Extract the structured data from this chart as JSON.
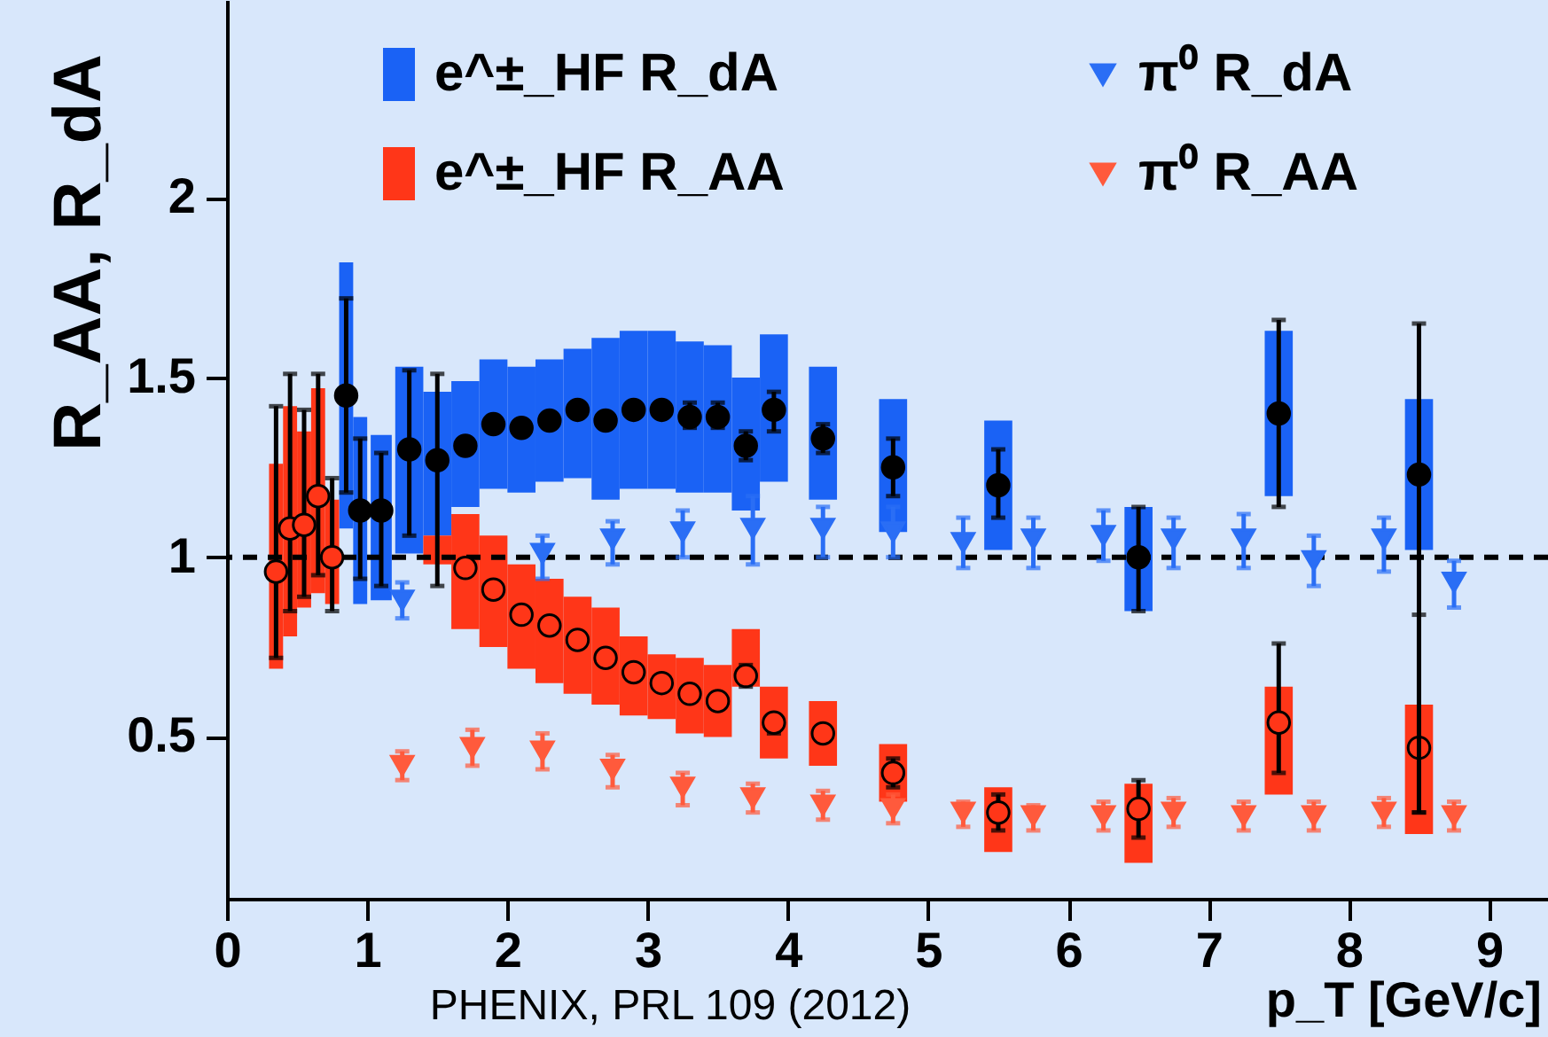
{
  "chart_data": {
    "type": "scatter",
    "xlabel": "p_T [GeV/c]",
    "ylabel": "R_AA, R_dA",
    "xlim": [
      0,
      9.42
    ],
    "ylim": [
      0.05,
      2.55
    ],
    "xticks": [
      0,
      1,
      2,
      3,
      4,
      5,
      6,
      7,
      8,
      9
    ],
    "yticks": [
      0.5,
      1,
      1.5,
      2
    ],
    "grid": false,
    "legend": "top",
    "series": [
      {
        "name": "e^±_HF R_dA",
        "type": "bar",
        "color": "#1a62f5",
        "x": [
          0.85,
          0.95,
          1.1,
          1.3,
          1.5,
          1.7,
          1.9,
          2.1,
          2.3,
          2.5,
          2.7,
          2.9,
          3.1,
          3.3,
          3.5,
          3.7,
          3.9,
          4.25,
          4.75,
          5.5,
          6.5,
          7.5,
          8.5
        ],
        "base": [
          1.08,
          0.87,
          0.88,
          1.01,
          1.06,
          1.14,
          1.19,
          1.18,
          1.21,
          1.22,
          1.16,
          1.19,
          1.19,
          1.18,
          1.18,
          1.13,
          1.21,
          1.16,
          1.07,
          1.02,
          0.85,
          1.17,
          1.02
        ],
        "values": [
          0.74,
          0.52,
          0.46,
          0.52,
          0.4,
          0.35,
          0.36,
          0.35,
          0.34,
          0.36,
          0.45,
          0.44,
          0.44,
          0.42,
          0.41,
          0.37,
          0.41,
          0.37,
          0.37,
          0.36,
          0.29,
          0.46,
          0.42
        ]
      },
      {
        "name": "e^±_HF R_AA",
        "type": "bar",
        "color": "#ff3618",
        "x": [
          0.35,
          0.45,
          0.55,
          0.65,
          0.75,
          1.5,
          1.7,
          1.9,
          2.1,
          2.3,
          2.5,
          2.7,
          2.9,
          3.1,
          3.3,
          3.5,
          3.7,
          3.9,
          4.25,
          4.75,
          5.5,
          6.5,
          7.5,
          8.5
        ],
        "base": [
          0.69,
          0.78,
          0.86,
          0.9,
          0.87,
          0.98,
          0.8,
          0.75,
          0.69,
          0.65,
          0.62,
          0.59,
          0.56,
          0.55,
          0.51,
          0.5,
          0.64,
          0.44,
          0.42,
          0.32,
          0.18,
          0.15,
          0.34,
          0.23
        ],
        "values": [
          0.57,
          0.64,
          0.49,
          0.57,
          0.29,
          0.08,
          0.32,
          0.31,
          0.29,
          0.29,
          0.27,
          0.27,
          0.22,
          0.18,
          0.21,
          0.2,
          0.16,
          0.2,
          0.18,
          0.16,
          0.18,
          0.22,
          0.3,
          0.36
        ]
      },
      {
        "name": "π⁰ R_dA",
        "marker": "triangle",
        "color": "#2a6ef5",
        "x": [
          1.25,
          2.25,
          2.75,
          3.25,
          3.75,
          4.25,
          4.75,
          5.25,
          5.75,
          6.25,
          6.75,
          7.25,
          7.75,
          8.25,
          8.75
        ],
        "values": [
          0.88,
          1.01,
          1.05,
          1.07,
          1.08,
          1.08,
          1.07,
          1.04,
          1.05,
          1.06,
          1.05,
          1.05,
          0.99,
          1.05,
          0.93
        ],
        "errors": [
          [
            0.83,
            0.93
          ],
          [
            0.94,
            1.06
          ],
          [
            0.98,
            1.1
          ],
          [
            1.0,
            1.13
          ],
          [
            0.98,
            1.17
          ],
          [
            1.0,
            1.14
          ],
          [
            1.0,
            1.14
          ],
          [
            0.97,
            1.11
          ],
          [
            0.97,
            1.11
          ],
          [
            0.99,
            1.13
          ],
          [
            0.97,
            1.11
          ],
          [
            0.97,
            1.12
          ],
          [
            0.92,
            1.06
          ],
          [
            0.96,
            1.11
          ],
          [
            0.86,
            0.99
          ]
        ]
      },
      {
        "name": "π⁰ R_AA",
        "marker": "triangle",
        "color": "#ff5a3c",
        "x": [
          1.25,
          1.75,
          2.25,
          2.75,
          3.25,
          3.75,
          4.25,
          4.75,
          5.25,
          5.75,
          6.25,
          6.75,
          7.25,
          7.75,
          8.25,
          8.75
        ],
        "values": [
          0.42,
          0.47,
          0.46,
          0.41,
          0.36,
          0.33,
          0.31,
          0.3,
          0.29,
          0.28,
          0.28,
          0.29,
          0.28,
          0.28,
          0.29,
          0.28
        ],
        "errors": [
          [
            0.38,
            0.46
          ],
          [
            0.42,
            0.52
          ],
          [
            0.41,
            0.51
          ],
          [
            0.36,
            0.45
          ],
          [
            0.31,
            0.4
          ],
          [
            0.29,
            0.37
          ],
          [
            0.27,
            0.35
          ],
          [
            0.26,
            0.34
          ],
          [
            0.25,
            0.32
          ],
          [
            0.24,
            0.31
          ],
          [
            0.24,
            0.32
          ],
          [
            0.25,
            0.33
          ],
          [
            0.24,
            0.32
          ],
          [
            0.24,
            0.32
          ],
          [
            0.25,
            0.33
          ],
          [
            0.24,
            0.32
          ]
        ]
      },
      {
        "marker": "circle",
        "color": "#ff3618",
        "x": [
          0.35,
          0.45,
          0.55,
          0.65,
          0.75,
          1.7,
          1.9,
          2.1,
          2.3,
          2.5,
          2.7,
          2.9,
          3.1,
          3.3,
          3.5,
          3.7,
          3.9,
          4.25,
          4.75,
          5.5,
          6.5,
          7.5,
          8.5
        ],
        "values": [
          0.96,
          1.08,
          1.09,
          1.17,
          1.0,
          0.97,
          0.91,
          0.84,
          0.81,
          0.77,
          0.72,
          0.68,
          0.65,
          0.62,
          0.6,
          0.67,
          0.54,
          0.51,
          0.4,
          0.29,
          0.3,
          0.54,
          0.47
        ],
        "errors": [
          [
            0.72,
            1.42
          ],
          [
            0.85,
            1.51
          ],
          [
            0.89,
            1.41
          ],
          [
            0.95,
            1.51
          ],
          [
            0.85,
            1.22
          ],
          null,
          null,
          null,
          null,
          null,
          null,
          null,
          null,
          null,
          null,
          [
            0.64,
            0.7
          ],
          [
            0.51,
            0.56
          ],
          [
            0.49,
            0.53
          ],
          [
            0.36,
            0.44
          ],
          [
            0.24,
            0.34
          ],
          [
            0.22,
            0.38
          ],
          [
            0.4,
            0.76
          ],
          [
            0.29,
            0.84
          ]
        ]
      },
      {
        "marker": "circle",
        "color": "#000000",
        "x": [
          0.85,
          0.95,
          1.1,
          1.3,
          1.5,
          1.7,
          1.9,
          2.1,
          2.3,
          2.5,
          2.7,
          2.9,
          3.1,
          3.3,
          3.5,
          3.7,
          3.9,
          4.25,
          4.75,
          5.5,
          6.5,
          7.5,
          8.5
        ],
        "values": [
          1.45,
          1.13,
          1.13,
          1.3,
          1.27,
          1.31,
          1.37,
          1.36,
          1.38,
          1.41,
          1.38,
          1.41,
          1.41,
          1.39,
          1.39,
          1.31,
          1.41,
          1.33,
          1.25,
          1.2,
          1.0,
          1.4,
          1.23
        ],
        "errors": [
          [
            1.18,
            1.72
          ],
          [
            0.94,
            1.33
          ],
          [
            0.92,
            1.29
          ],
          [
            1.06,
            1.52
          ],
          [
            0.92,
            1.51
          ],
          null,
          null,
          null,
          null,
          null,
          null,
          null,
          null,
          [
            1.36,
            1.43
          ],
          [
            1.36,
            1.43
          ],
          [
            1.27,
            1.35
          ],
          [
            1.35,
            1.46
          ],
          [
            1.29,
            1.37
          ],
          [
            1.17,
            1.33
          ],
          [
            1.11,
            1.3
          ],
          [
            0.85,
            1.14
          ],
          [
            1.14,
            1.66
          ],
          [
            0.29,
            1.65
          ]
        ]
      }
    ],
    "ref_lines": [
      {
        "axis": "y",
        "value": 1,
        "color": "#000000",
        "line_style": "dashed"
      }
    ],
    "annotations": [
      "PHENIX, PRL 109 (2012)"
    ]
  }
}
